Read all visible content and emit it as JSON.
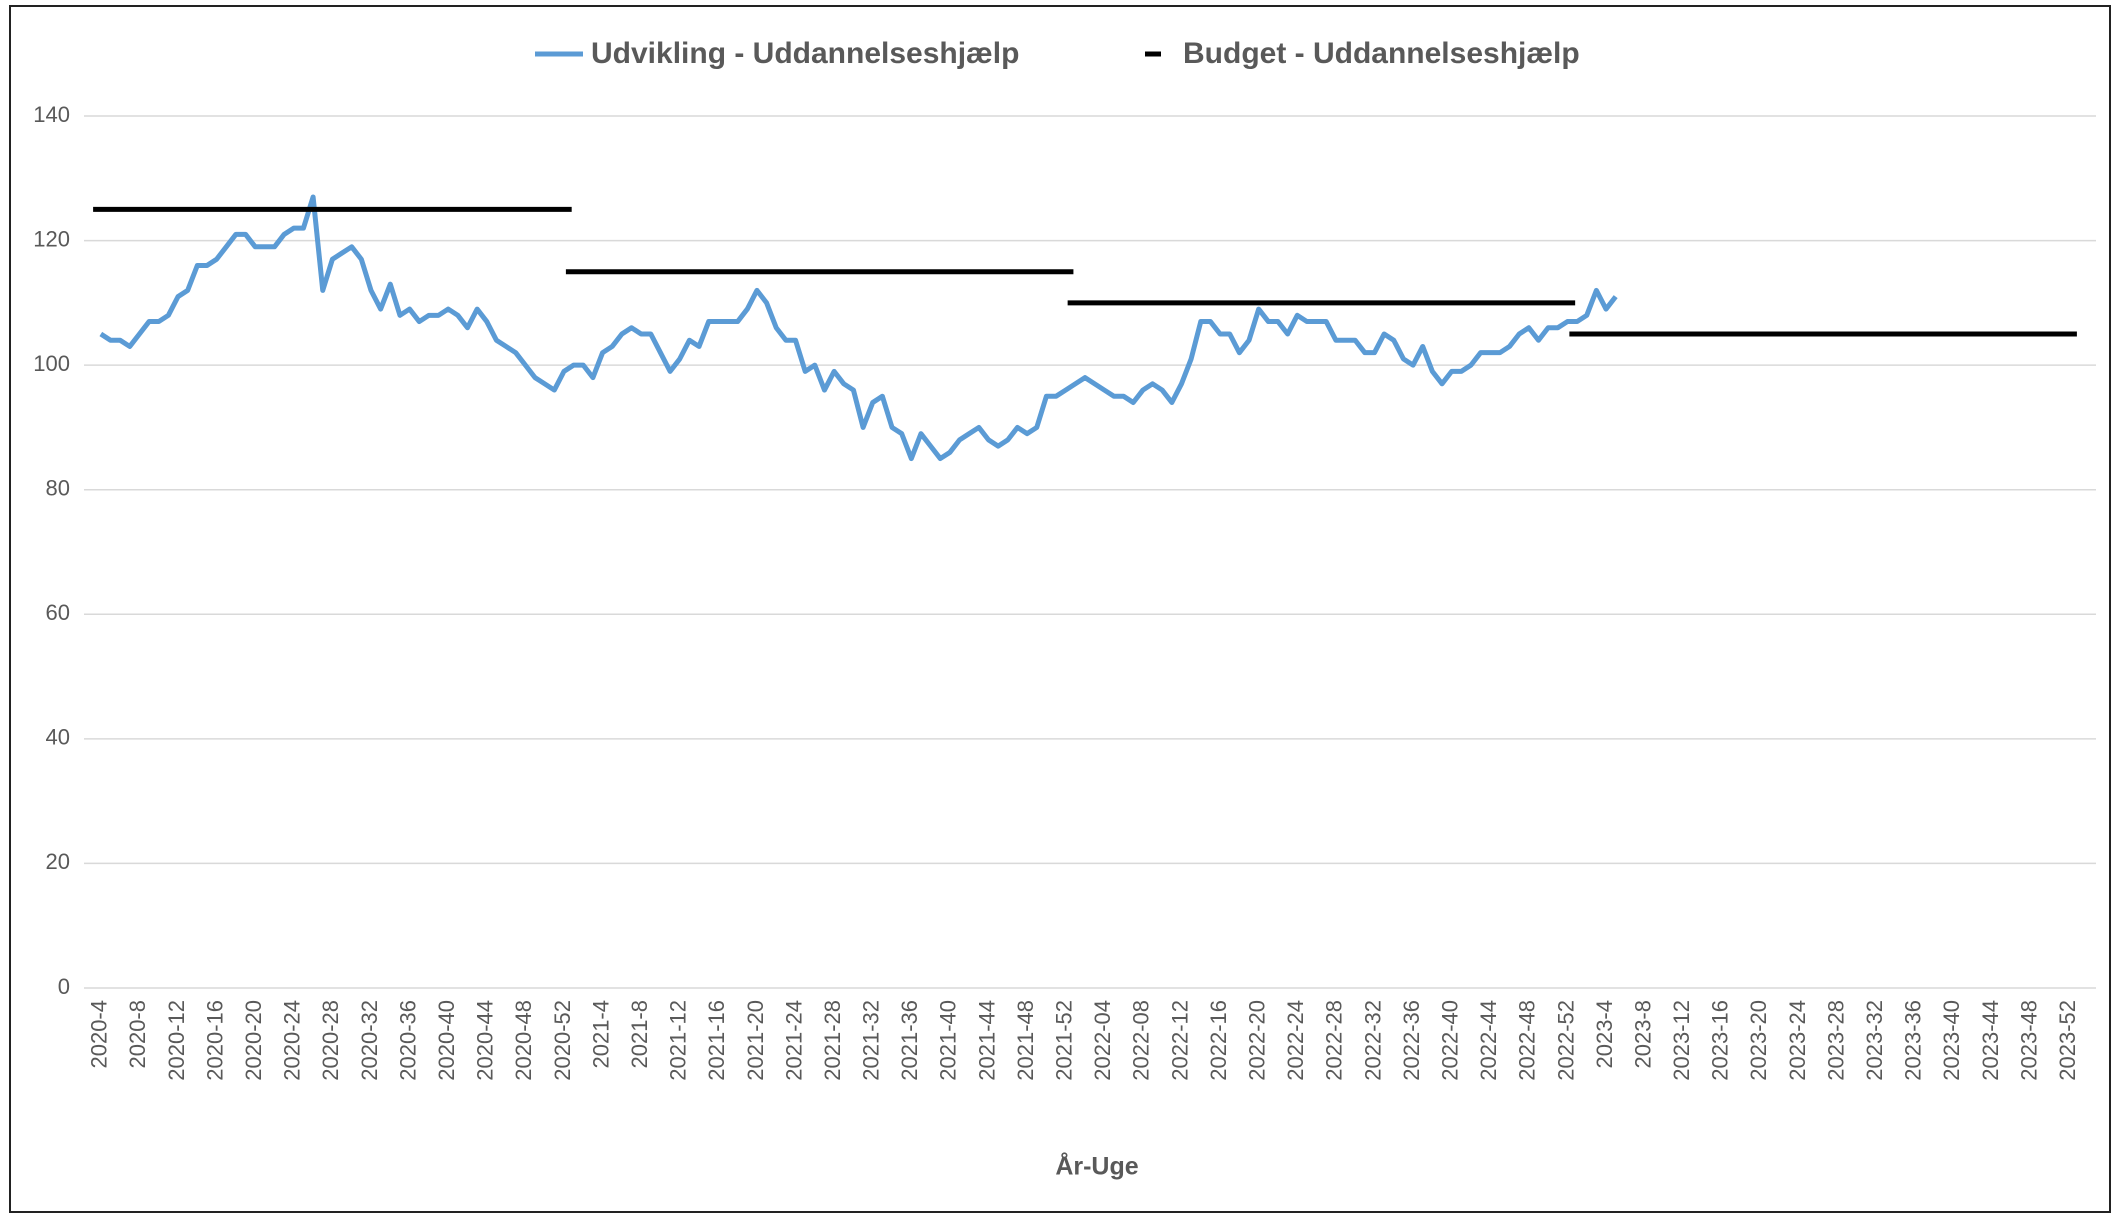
{
  "chart_data": {
    "type": "line",
    "x_label": "År-Uge",
    "categories": [
      "2020-4",
      null,
      null,
      null,
      "2020-8",
      null,
      null,
      null,
      "2020-12",
      null,
      null,
      null,
      "2020-16",
      null,
      null,
      null,
      "2020-20",
      null,
      null,
      null,
      "2020-24",
      null,
      null,
      null,
      "2020-28",
      null,
      null,
      null,
      "2020-32",
      null,
      null,
      null,
      "2020-36",
      null,
      null,
      null,
      "2020-40",
      null,
      null,
      null,
      "2020-44",
      null,
      null,
      null,
      "2020-48",
      null,
      null,
      null,
      "2020-52",
      null,
      null,
      null,
      "2021-4",
      null,
      null,
      null,
      "2021-8",
      null,
      null,
      null,
      "2021-12",
      null,
      null,
      null,
      "2021-16",
      null,
      null,
      null,
      "2021-20",
      null,
      null,
      null,
      "2021-24",
      null,
      null,
      null,
      "2021-28",
      null,
      null,
      null,
      "2021-32",
      null,
      null,
      null,
      "2021-36",
      null,
      null,
      null,
      "2021-40",
      null,
      null,
      null,
      "2021-44",
      null,
      null,
      null,
      "2021-48",
      null,
      null,
      null,
      "2021-52",
      null,
      null,
      null,
      "2022-04",
      null,
      null,
      null,
      "2022-08",
      null,
      null,
      null,
      "2022-12",
      null,
      null,
      null,
      "2022-16",
      null,
      null,
      null,
      "2022-20",
      null,
      null,
      null,
      "2022-24",
      null,
      null,
      null,
      "2022-28",
      null,
      null,
      null,
      "2022-32",
      null,
      null,
      null,
      "2022-36",
      null,
      null,
      null,
      "2022-40",
      null,
      null,
      null,
      "2022-44",
      null,
      null,
      null,
      "2022-48",
      null,
      null,
      null,
      "2022-52",
      null,
      null,
      null,
      "2023-4",
      null,
      null,
      null,
      "2023-8",
      null,
      null,
      null,
      "2023-12",
      null,
      null,
      null,
      "2023-16",
      null,
      null,
      null,
      "2023-20",
      null,
      null,
      null,
      "2023-24",
      null,
      null,
      null,
      "2023-28",
      null,
      null,
      null,
      "2023-32",
      null,
      null,
      null,
      "2023-36",
      null,
      null,
      null,
      "2023-40",
      null,
      null,
      null,
      "2023-44",
      null,
      null,
      null,
      "2023-48",
      null,
      null,
      null,
      "2023-52"
    ],
    "series": [
      {
        "name": "Udvikling - Uddannelseshjælp",
        "color": "#5b9bd5",
        "values": [
          105,
          104,
          104,
          103,
          105,
          107,
          107,
          108,
          111,
          112,
          116,
          116,
          117,
          119,
          121,
          121,
          119,
          119,
          119,
          121,
          122,
          122,
          127,
          112,
          117,
          118,
          119,
          117,
          112,
          109,
          113,
          108,
          109,
          107,
          108,
          108,
          109,
          108,
          106,
          109,
          107,
          104,
          103,
          102,
          100,
          98,
          97,
          96,
          99,
          100,
          100,
          98,
          102,
          103,
          105,
          106,
          105,
          105,
          102,
          99,
          101,
          104,
          103,
          107,
          107,
          107,
          107,
          109,
          112,
          110,
          106,
          104,
          104,
          99,
          100,
          96,
          99,
          97,
          96,
          90,
          94,
          95,
          90,
          89,
          85,
          89,
          87,
          85,
          86,
          88,
          89,
          90,
          88,
          87,
          88,
          90,
          89,
          90,
          95,
          95,
          96,
          97,
          98,
          97,
          96,
          95,
          95,
          94,
          96,
          97,
          96,
          94,
          97,
          101,
          107,
          107,
          105,
          105,
          102,
          104,
          109,
          107,
          107,
          105,
          108,
          107,
          107,
          107,
          104,
          104,
          104,
          102,
          102,
          105,
          104,
          101,
          100,
          103,
          99,
          97,
          99,
          99,
          100,
          102,
          102,
          102,
          103,
          105,
          106,
          104,
          106,
          106,
          107,
          107,
          108,
          112,
          109,
          111,
          null,
          null,
          null,
          null,
          null,
          null,
          null,
          null,
          null,
          null,
          null,
          null,
          null,
          null,
          null,
          null,
          null,
          null,
          null,
          null,
          null,
          null,
          null,
          null,
          null,
          null,
          null,
          null,
          null,
          null,
          null,
          null,
          null,
          null,
          null,
          null,
          null,
          null,
          null,
          null,
          null,
          null,
          null,
          null,
          null,
          null,
          null
        ]
      },
      {
        "name": "Budget - Uddannelseshjælp",
        "color": "#000000",
        "values": [
          125,
          125,
          125,
          125,
          125,
          125,
          125,
          125,
          125,
          125,
          125,
          125,
          125,
          125,
          125,
          125,
          125,
          125,
          125,
          125,
          125,
          125,
          125,
          125,
          125,
          125,
          125,
          125,
          125,
          125,
          125,
          125,
          125,
          125,
          125,
          125,
          125,
          125,
          125,
          125,
          125,
          125,
          125,
          125,
          125,
          125,
          125,
          125,
          125,
          115,
          115,
          115,
          115,
          115,
          115,
          115,
          115,
          115,
          115,
          115,
          115,
          115,
          115,
          115,
          115,
          115,
          115,
          115,
          115,
          115,
          115,
          115,
          115,
          115,
          115,
          115,
          115,
          115,
          115,
          115,
          115,
          115,
          115,
          115,
          115,
          115,
          115,
          115,
          115,
          115,
          115,
          115,
          115,
          115,
          115,
          115,
          115,
          115,
          115,
          115,
          115,
          110,
          110,
          110,
          110,
          110,
          110,
          110,
          110,
          110,
          110,
          110,
          110,
          110,
          110,
          110,
          110,
          110,
          110,
          110,
          110,
          110,
          110,
          110,
          110,
          110,
          110,
          110,
          110,
          110,
          110,
          110,
          110,
          110,
          110,
          110,
          110,
          110,
          110,
          110,
          110,
          110,
          110,
          110,
          110,
          110,
          110,
          110,
          110,
          110,
          110,
          110,
          110,
          105,
          105,
          105,
          105,
          105,
          105,
          105,
          105,
          105,
          105,
          105,
          105,
          105,
          105,
          105,
          105,
          105,
          105,
          105,
          105,
          105,
          105,
          105,
          105,
          105,
          105,
          105,
          105,
          105,
          105,
          105,
          105,
          105,
          105,
          105,
          105,
          105,
          105,
          105,
          105,
          105,
          105,
          105,
          105,
          105,
          105,
          105,
          105,
          105,
          105,
          105,
          105
        ]
      }
    ],
    "ylim": [
      0,
      140
    ],
    "yticks": [
      0,
      20,
      40,
      60,
      80,
      100,
      120,
      140
    ],
    "grid": true,
    "legend": "top"
  }
}
